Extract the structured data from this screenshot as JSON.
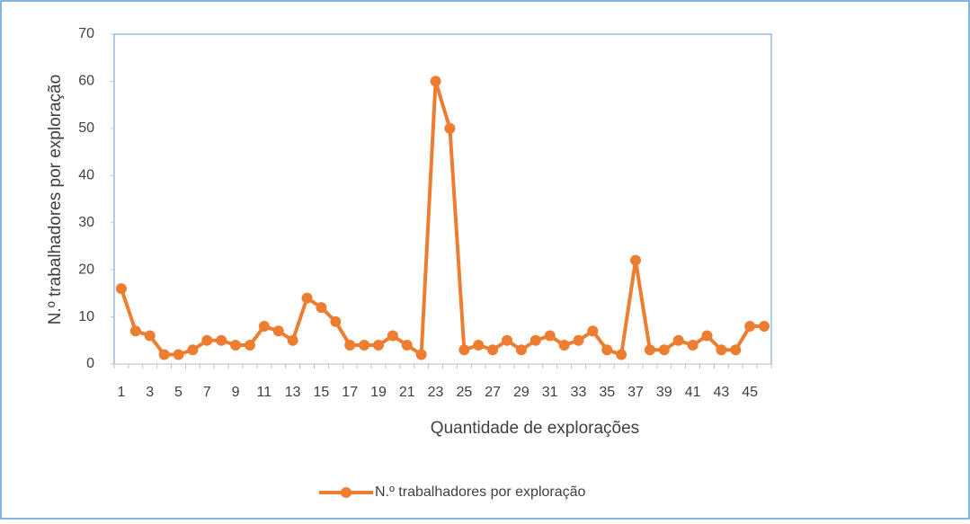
{
  "chart_data": {
    "type": "line",
    "x_label": "Quantidade de explorações",
    "y_label": "N.º trabalhadores por exploração",
    "categories": [
      1,
      null,
      3,
      null,
      5,
      null,
      7,
      null,
      9,
      null,
      11,
      null,
      13,
      null,
      15,
      null,
      17,
      null,
      19,
      null,
      21,
      null,
      23,
      null,
      25,
      null,
      27,
      null,
      29,
      null,
      31,
      null,
      33,
      null,
      35,
      null,
      37,
      null,
      39,
      null,
      41,
      null,
      43,
      null,
      45,
      null
    ],
    "series": [
      {
        "name": "N.º trabalhadores por exploração",
        "color": "#ed7d31",
        "values": [
          16,
          7,
          6,
          2,
          2,
          3,
          5,
          5,
          4,
          4,
          8,
          7,
          5,
          14,
          12,
          9,
          4,
          4,
          4,
          6,
          4,
          2,
          60,
          50,
          3,
          4,
          3,
          5,
          3,
          5,
          6,
          4,
          5,
          7,
          3,
          2,
          22,
          3,
          3,
          5,
          4,
          6,
          3,
          3,
          8,
          8
        ]
      }
    ],
    "ylim": [
      0,
      70
    ],
    "yticks": [
      0,
      10,
      20,
      30,
      40,
      50,
      60,
      70
    ],
    "legend": "bottom"
  }
}
